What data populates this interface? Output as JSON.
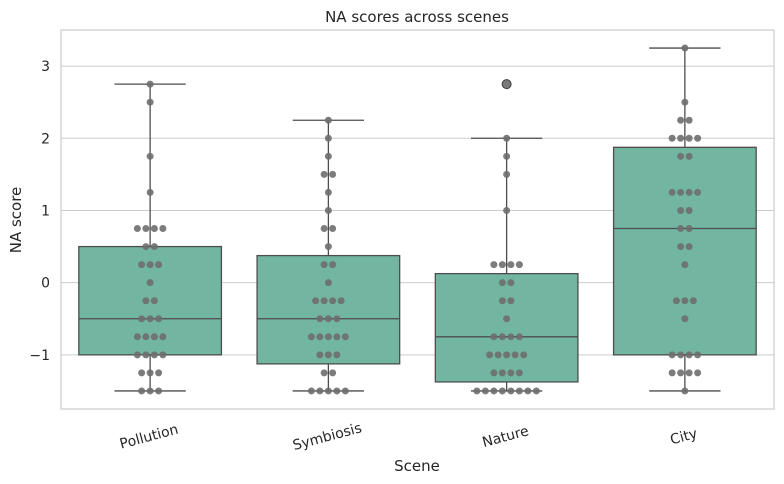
{
  "chart_data": {
    "type": "box",
    "title": "NA scores across scenes",
    "xlabel": "Scene",
    "ylabel": "NA score",
    "categories": [
      "Pollution",
      "Symbiosis",
      "Nature",
      "City"
    ],
    "ylim": [
      -1.75,
      3.5
    ],
    "yticks": [
      -1,
      0,
      1,
      2,
      3
    ],
    "grid": "horizontal",
    "box_color": "#72b6a1",
    "point_color": "#6e6e6e",
    "boxes": [
      {
        "category": "Pollution",
        "whisker_low": -1.5,
        "q1": -1.0,
        "median": -0.5,
        "q3": 0.5,
        "whisker_high": 2.75,
        "outliers": []
      },
      {
        "category": "Symbiosis",
        "whisker_low": -1.5,
        "q1": -1.125,
        "median": -0.5,
        "q3": 0.375,
        "whisker_high": 2.25,
        "outliers": []
      },
      {
        "category": "Nature",
        "whisker_low": -1.5,
        "q1": -1.375,
        "median": -0.75,
        "q3": 0.125,
        "whisker_high": 2.0,
        "outliers": [
          2.75
        ]
      },
      {
        "category": "City",
        "whisker_low": -1.5,
        "q1": -1.0,
        "median": 0.75,
        "q3": 1.875,
        "whisker_high": 3.25,
        "outliers": []
      }
    ],
    "points": [
      {
        "category": "Pollution",
        "values": [
          2.75,
          2.5,
          1.75,
          1.25,
          0.75,
          0.75,
          0.75,
          0.75,
          0.5,
          0.5,
          0.25,
          0.25,
          0.25,
          0.0,
          -0.25,
          -0.25,
          -0.5,
          -0.5,
          -0.5,
          -0.75,
          -0.75,
          -0.75,
          -0.75,
          -1.0,
          -1.0,
          -1.0,
          -1.0,
          -1.25,
          -1.25,
          -1.25,
          -1.5,
          -1.5,
          -1.5
        ]
      },
      {
        "category": "Symbiosis",
        "values": [
          2.25,
          2.0,
          1.75,
          1.5,
          1.5,
          1.25,
          1.0,
          0.75,
          0.75,
          0.5,
          0.25,
          0.25,
          0.0,
          -0.25,
          -0.25,
          -0.25,
          -0.25,
          -0.5,
          -0.5,
          -0.5,
          -0.75,
          -0.75,
          -0.75,
          -0.75,
          -0.75,
          -1.0,
          -1.0,
          -1.0,
          -1.25,
          -1.25,
          -1.5,
          -1.5,
          -1.5,
          -1.5,
          -1.5
        ]
      },
      {
        "category": "Nature",
        "values": [
          2.0,
          1.75,
          1.5,
          1.0,
          0.25,
          0.25,
          0.25,
          0.25,
          0.0,
          0.0,
          -0.25,
          -0.25,
          -0.5,
          -0.75,
          -0.75,
          -0.75,
          -0.75,
          -1.0,
          -1.0,
          -1.0,
          -1.0,
          -1.0,
          -1.25,
          -1.25,
          -1.25,
          -1.25,
          -1.5,
          -1.5,
          -1.5,
          -1.5,
          -1.5,
          -1.5,
          -1.5,
          -1.5
        ]
      },
      {
        "category": "City",
        "values": [
          3.25,
          2.5,
          2.25,
          2.25,
          2.0,
          2.0,
          2.0,
          2.0,
          1.75,
          1.75,
          1.25,
          1.25,
          1.25,
          1.25,
          1.0,
          1.0,
          0.75,
          0.75,
          0.5,
          0.5,
          0.25,
          -0.25,
          -0.25,
          -0.25,
          -0.5,
          -1.0,
          -1.0,
          -1.0,
          -1.0,
          -1.25,
          -1.25,
          -1.25,
          -1.25,
          -1.5
        ]
      }
    ]
  }
}
